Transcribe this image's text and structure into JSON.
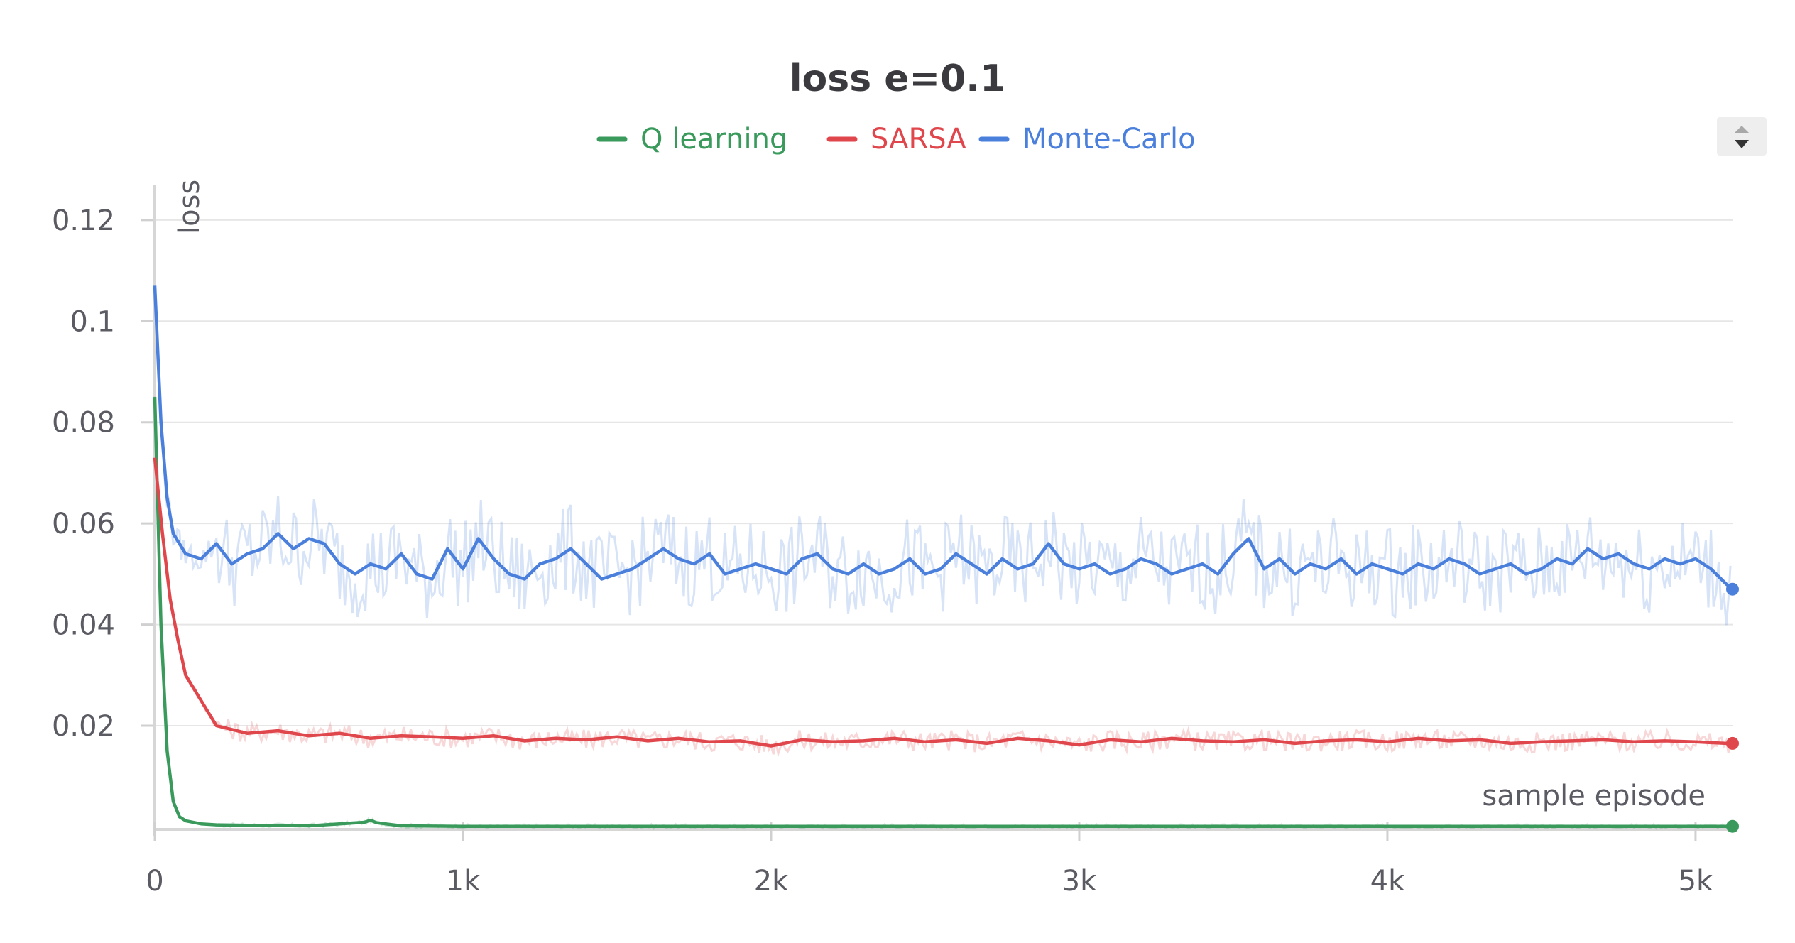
{
  "chart_data": {
    "type": "line",
    "title": "loss e=0.1",
    "xlabel": "sample episode",
    "ylabel": "loss",
    "xlim": [
      0,
      5120
    ],
    "ylim": [
      -0.0005,
      0.127
    ],
    "x_ticks": [
      {
        "value": 0,
        "label": "0"
      },
      {
        "value": 1000,
        "label": "1k"
      },
      {
        "value": 2000,
        "label": "2k"
      },
      {
        "value": 3000,
        "label": "3k"
      },
      {
        "value": 4000,
        "label": "4k"
      },
      {
        "value": 5000,
        "label": "5k"
      }
    ],
    "y_ticks": [
      {
        "value": 0.02,
        "label": "0.02"
      },
      {
        "value": 0.04,
        "label": "0.04"
      },
      {
        "value": 0.06,
        "label": "0.06"
      },
      {
        "value": 0.08,
        "label": "0.08"
      },
      {
        "value": 0.1,
        "label": "0.1"
      },
      {
        "value": 0.12,
        "label": "0.12"
      }
    ],
    "grid": true,
    "legend_position": "top-center",
    "series": [
      {
        "name": "Q learning",
        "color": "#3a9a5c",
        "x": [
          0,
          20,
          40,
          60,
          80,
          100,
          150,
          200,
          300,
          400,
          500,
          600,
          680,
          700,
          720,
          800,
          1000,
          1500,
          2000,
          3000,
          4000,
          5120
        ],
        "values": [
          0.085,
          0.04,
          0.015,
          0.005,
          0.002,
          0.0012,
          0.0006,
          0.0004,
          0.0003,
          0.0003,
          0.0002,
          0.0006,
          0.0009,
          0.0013,
          0.0008,
          0.0002,
          0.0001,
          0.0001,
          0.0001,
          0.0001,
          0.0001,
          0.0001
        ]
      },
      {
        "name": "SARSA",
        "color": "#e0474c",
        "x": [
          0,
          25,
          50,
          75,
          100,
          150,
          200,
          300,
          400,
          500,
          600,
          700,
          800,
          900,
          1000,
          1100,
          1200,
          1300,
          1400,
          1500,
          1600,
          1700,
          1800,
          1900,
          2000,
          2100,
          2200,
          2300,
          2400,
          2500,
          2600,
          2700,
          2800,
          2900,
          3000,
          3100,
          3200,
          3300,
          3400,
          3500,
          3600,
          3700,
          3800,
          3900,
          4000,
          4100,
          4200,
          4300,
          4400,
          4500,
          4600,
          4700,
          4800,
          4900,
          5000,
          5100,
          5120
        ],
        "values": [
          0.073,
          0.058,
          0.045,
          0.037,
          0.03,
          0.025,
          0.02,
          0.0185,
          0.019,
          0.018,
          0.0185,
          0.0175,
          0.018,
          0.0178,
          0.0175,
          0.018,
          0.017,
          0.0175,
          0.0172,
          0.0178,
          0.017,
          0.0175,
          0.0168,
          0.017,
          0.016,
          0.0172,
          0.0168,
          0.017,
          0.0175,
          0.0168,
          0.0172,
          0.0165,
          0.0175,
          0.017,
          0.0162,
          0.0172,
          0.0168,
          0.0175,
          0.017,
          0.0168,
          0.0172,
          0.0165,
          0.017,
          0.0172,
          0.0168,
          0.0175,
          0.017,
          0.0172,
          0.0165,
          0.0168,
          0.017,
          0.0172,
          0.0168,
          0.017,
          0.0168,
          0.0165,
          0.0165
        ]
      },
      {
        "name": "Monte-Carlo",
        "color": "#4a80dc",
        "x": [
          0,
          20,
          40,
          60,
          80,
          100,
          150,
          200,
          250,
          300,
          350,
          400,
          450,
          500,
          550,
          600,
          650,
          700,
          750,
          800,
          850,
          900,
          950,
          1000,
          1050,
          1100,
          1150,
          1200,
          1250,
          1300,
          1350,
          1400,
          1450,
          1500,
          1550,
          1600,
          1650,
          1700,
          1750,
          1800,
          1850,
          1900,
          1950,
          2000,
          2050,
          2100,
          2150,
          2200,
          2250,
          2300,
          2350,
          2400,
          2450,
          2500,
          2550,
          2600,
          2650,
          2700,
          2750,
          2800,
          2850,
          2900,
          2950,
          3000,
          3050,
          3100,
          3150,
          3200,
          3250,
          3300,
          3350,
          3400,
          3450,
          3500,
          3550,
          3600,
          3650,
          3700,
          3750,
          3800,
          3850,
          3900,
          3950,
          4000,
          4050,
          4100,
          4150,
          4200,
          4250,
          4300,
          4350,
          4400,
          4450,
          4500,
          4550,
          4600,
          4650,
          4700,
          4750,
          4800,
          4850,
          4900,
          4950,
          5000,
          5050,
          5100,
          5120
        ],
        "values": [
          0.107,
          0.08,
          0.065,
          0.058,
          0.056,
          0.054,
          0.053,
          0.056,
          0.052,
          0.054,
          0.055,
          0.058,
          0.055,
          0.057,
          0.056,
          0.052,
          0.05,
          0.052,
          0.051,
          0.054,
          0.05,
          0.049,
          0.055,
          0.051,
          0.057,
          0.053,
          0.05,
          0.049,
          0.052,
          0.053,
          0.055,
          0.052,
          0.049,
          0.05,
          0.051,
          0.053,
          0.055,
          0.053,
          0.052,
          0.054,
          0.05,
          0.051,
          0.052,
          0.051,
          0.05,
          0.053,
          0.054,
          0.051,
          0.05,
          0.052,
          0.05,
          0.051,
          0.053,
          0.05,
          0.051,
          0.054,
          0.052,
          0.05,
          0.053,
          0.051,
          0.052,
          0.056,
          0.052,
          0.051,
          0.052,
          0.05,
          0.051,
          0.053,
          0.052,
          0.05,
          0.051,
          0.052,
          0.05,
          0.054,
          0.057,
          0.051,
          0.053,
          0.05,
          0.052,
          0.051,
          0.053,
          0.05,
          0.052,
          0.051,
          0.05,
          0.052,
          0.051,
          0.053,
          0.052,
          0.05,
          0.051,
          0.052,
          0.05,
          0.051,
          0.053,
          0.052,
          0.055,
          0.053,
          0.054,
          0.052,
          0.051,
          0.053,
          0.052,
          0.053,
          0.051,
          0.048,
          0.047
        ]
      }
    ]
  }
}
